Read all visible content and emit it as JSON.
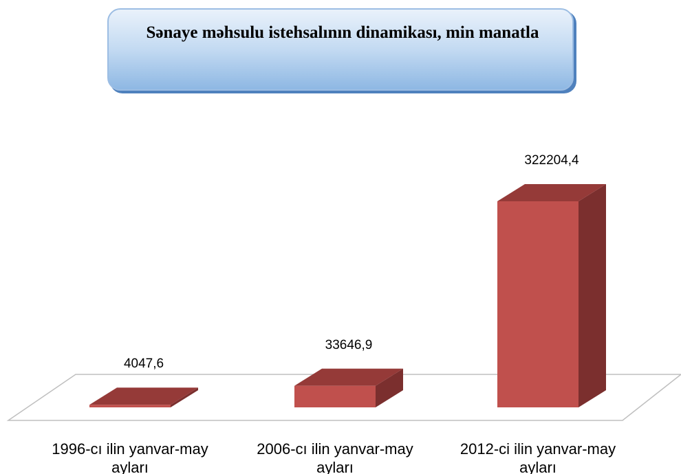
{
  "chart_data": {
    "type": "bar3d",
    "title": "Sənaye məhsulu istehsalının dinamikası, min manatla",
    "categories": [
      "1996-cı ilin yanvar-may ayları",
      "2006-cı  ilin yanvar-may ayları",
      "2012-ci ilin yanvar-may ayları"
    ],
    "values": [
      4047.6,
      33646.9,
      322204.4
    ],
    "value_labels": [
      "4047,6",
      "33646,9",
      "322204,4"
    ],
    "color": "#c0504d"
  }
}
